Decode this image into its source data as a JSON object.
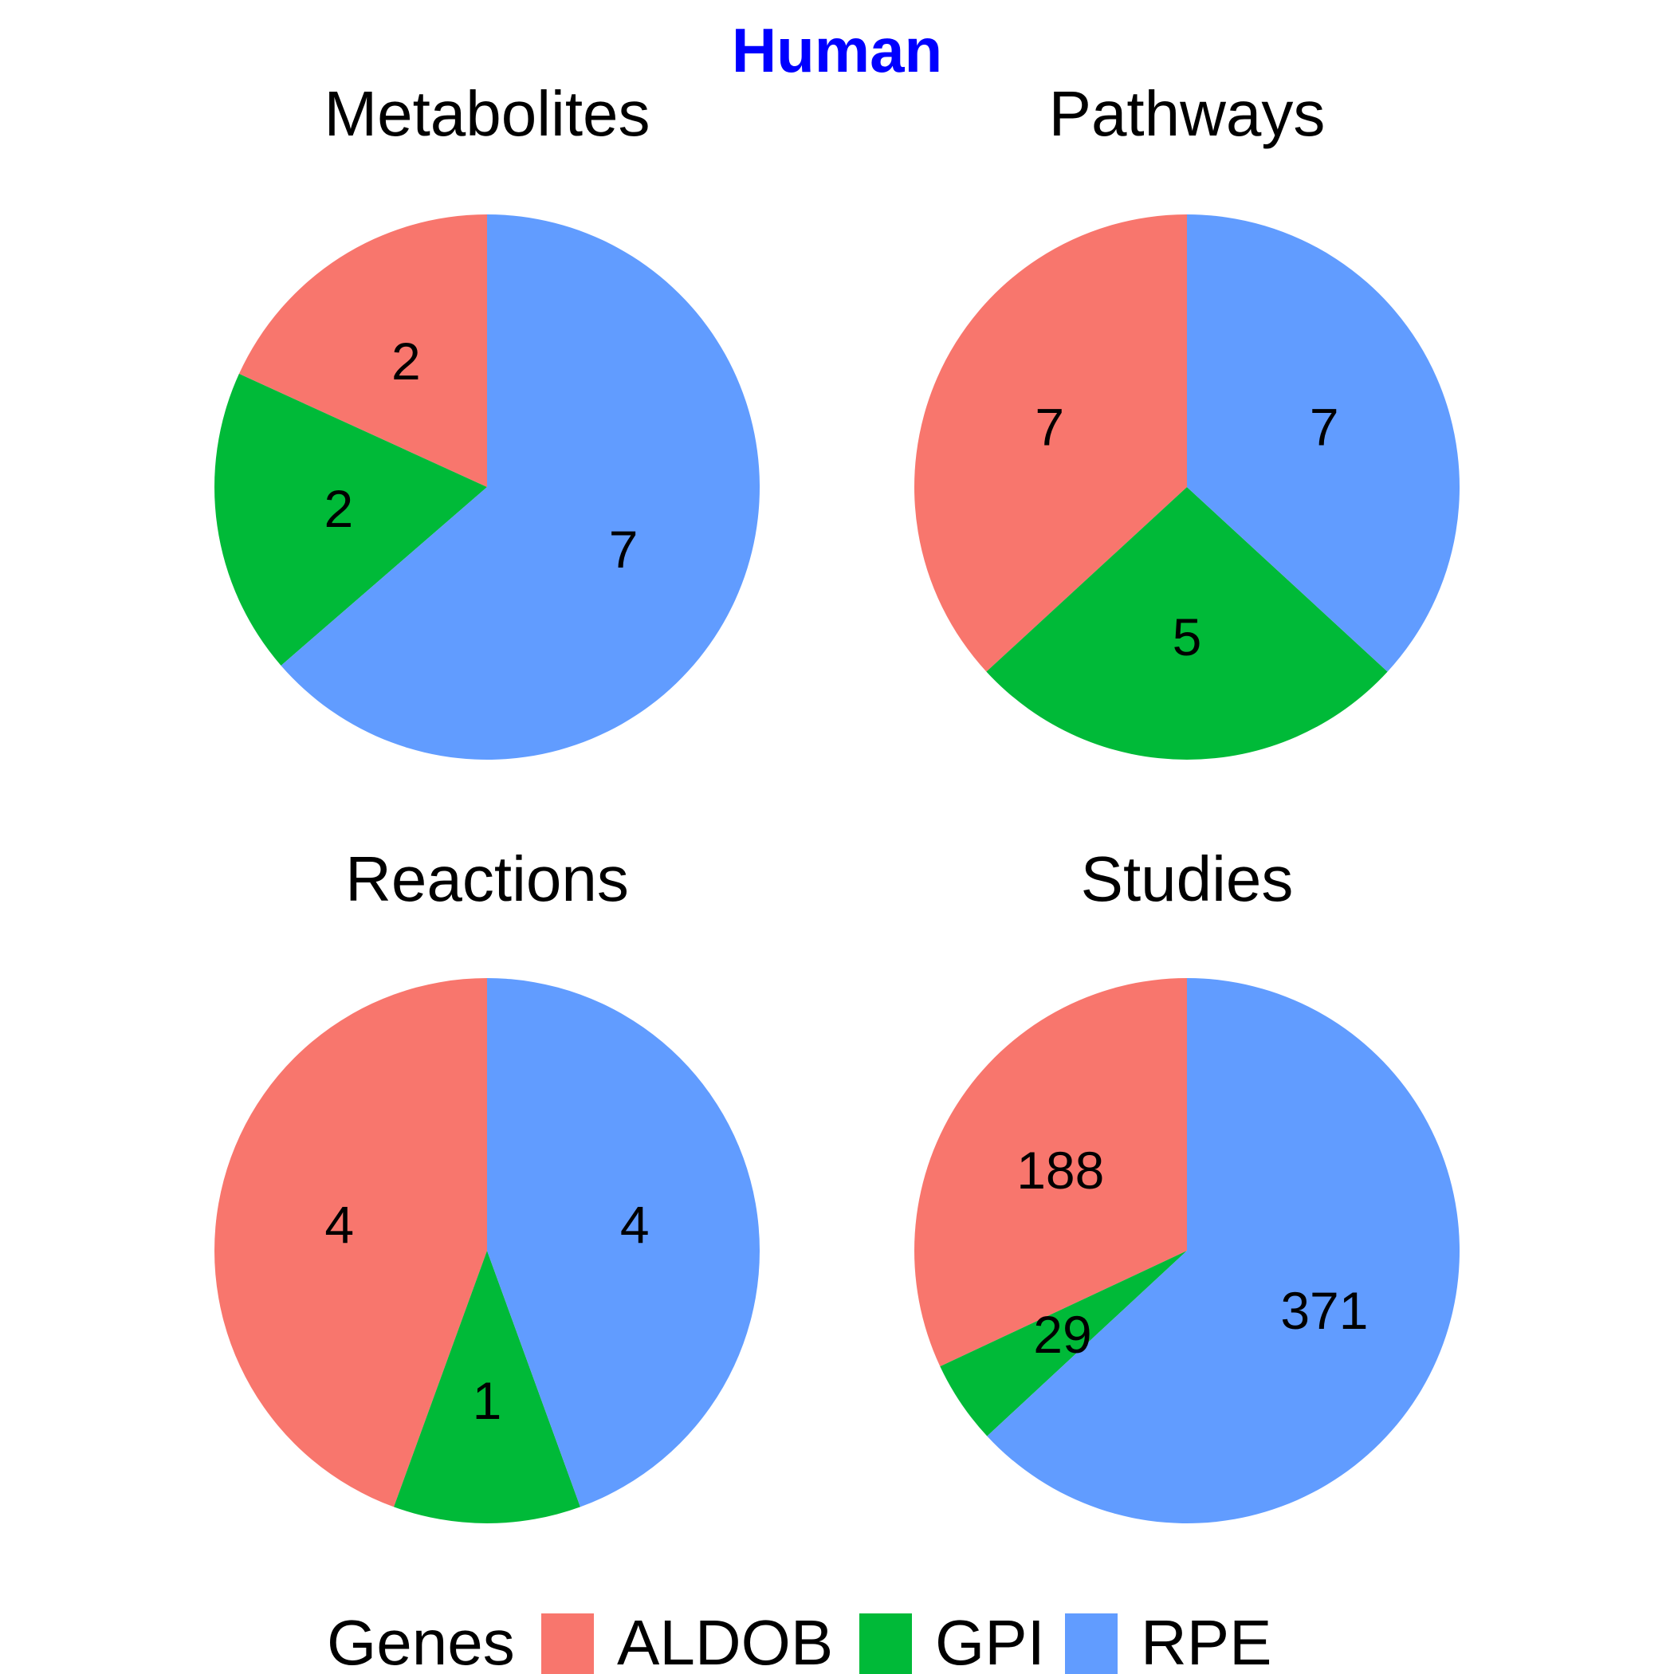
{
  "title": "Human",
  "title_color": "#0000FF",
  "legend": {
    "title": "Genes",
    "items": [
      {
        "label": "ALDOB",
        "color": "#F8766D"
      },
      {
        "label": "GPI",
        "color": "#00BA38"
      },
      {
        "label": "RPE",
        "color": "#619CFF"
      }
    ]
  },
  "chart_data": [
    {
      "type": "pie",
      "title": "Metabolites",
      "categories": [
        "ALDOB",
        "GPI",
        "RPE"
      ],
      "values": [
        2,
        2,
        7
      ],
      "labels": [
        "2",
        "2",
        "7"
      ],
      "colors": [
        "#F8766D",
        "#00BA38",
        "#619CFF"
      ]
    },
    {
      "type": "pie",
      "title": "Pathways",
      "categories": [
        "ALDOB",
        "GPI",
        "RPE"
      ],
      "values": [
        7,
        5,
        7
      ],
      "labels": [
        "7",
        "5",
        "7"
      ],
      "colors": [
        "#F8766D",
        "#00BA38",
        "#619CFF"
      ]
    },
    {
      "type": "pie",
      "title": "Reactions",
      "categories": [
        "ALDOB",
        "GPI",
        "RPE"
      ],
      "values": [
        4,
        1,
        4
      ],
      "labels": [
        "4",
        "1",
        "4"
      ],
      "colors": [
        "#F8766D",
        "#00BA38",
        "#619CFF"
      ]
    },
    {
      "type": "pie",
      "title": "Studies",
      "categories": [
        "ALDOB",
        "GPI",
        "RPE"
      ],
      "values": [
        188,
        29,
        371
      ],
      "labels": [
        "188",
        "29",
        "371"
      ],
      "colors": [
        "#F8766D",
        "#00BA38",
        "#619CFF"
      ]
    }
  ]
}
